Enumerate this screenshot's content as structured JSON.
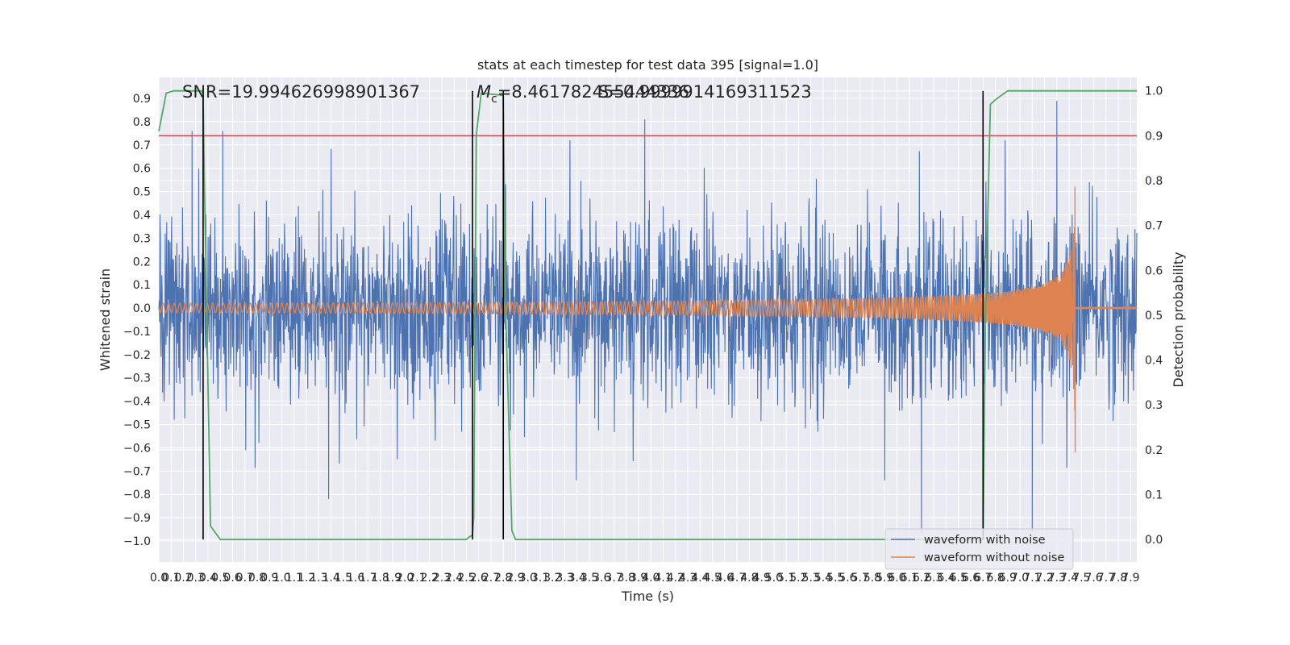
{
  "chart_data": {
    "type": "line",
    "title": "stats at each timestep for test data 395 [signal=1.0]",
    "xlabel": "Time (s)",
    "ylabel": "Whitened strain",
    "y2label": "Detection probability",
    "xlim": [
      0.0,
      7.95
    ],
    "ylim": [
      -1.09,
      0.99
    ],
    "y2lim": [
      -0.05,
      1.03
    ],
    "xticks": [
      0.0,
      0.1,
      0.2,
      0.3,
      0.4,
      0.5,
      0.6,
      0.7,
      0.8,
      0.9,
      1.0,
      1.1,
      1.2,
      1.3,
      1.4,
      1.5,
      1.6,
      1.7,
      1.8,
      1.9,
      2.0,
      2.1,
      2.2,
      2.3,
      2.4,
      2.5,
      2.6,
      2.7,
      2.8,
      2.9,
      3.0,
      3.1,
      3.2,
      3.3,
      3.4,
      3.5,
      3.6,
      3.7,
      3.8,
      3.9,
      4.0,
      4.1,
      4.2,
      4.3,
      4.4,
      4.5,
      4.6,
      4.7,
      4.8,
      4.9,
      5.0,
      5.1,
      5.2,
      5.3,
      5.4,
      5.5,
      5.6,
      5.7,
      5.8,
      5.9,
      6.0,
      6.1,
      6.2,
      6.3,
      6.4,
      6.5,
      6.6,
      6.7,
      6.8,
      6.9,
      7.0,
      7.1,
      7.2,
      7.3,
      7.4,
      7.5,
      7.6,
      7.7,
      7.8,
      7.9
    ],
    "xtick_labels": [
      "0.0",
      "0.1",
      "0.2",
      "0.3",
      "0.4",
      "0.5",
      "0.6",
      "0.7",
      "0.8",
      "0.9",
      "1.0",
      "1.1",
      "1.2",
      "1.3",
      "1.4",
      "1.5",
      "1.6",
      "1.7",
      "1.8",
      "1.9",
      "2.0",
      "2.1",
      "2.2",
      "2.3",
      "2.4",
      "2.5",
      "2.6",
      "2.7",
      "2.8",
      "2.9",
      "3.0",
      "3.1",
      "3.2",
      "3.3",
      "3.4",
      "3.5",
      "3.6",
      "3.7",
      "3.8",
      "3.9",
      "4.0",
      "4.1",
      "4.2",
      "4.3",
      "4.4",
      "4.5",
      "4.6",
      "4.7",
      "4.8",
      "4.9",
      "5.0",
      "5.1",
      "5.2",
      "5.3",
      "5.4",
      "5.5",
      "5.6",
      "5.7",
      "5.8",
      "5.9",
      "6.0",
      "6.1",
      "6.2",
      "6.3",
      "6.4",
      "6.5",
      "6.6",
      "6.7",
      "6.8",
      "6.9",
      "7.0",
      "7.1",
      "7.2",
      "7.3",
      "7.4",
      "7.5",
      "7.6",
      "7.7",
      "7.8",
      "7.9"
    ],
    "yticks": [
      -1.0,
      -0.9,
      -0.8,
      -0.7,
      -0.6,
      -0.5,
      -0.4,
      -0.3,
      -0.2,
      -0.1,
      0.0,
      0.1,
      0.2,
      0.3,
      0.4,
      0.5,
      0.6,
      0.7,
      0.8,
      0.9
    ],
    "ytick_labels": [
      "−1.0",
      "−0.9",
      "−0.8",
      "−0.7",
      "−0.6",
      "−0.5",
      "−0.4",
      "−0.3",
      "−0.2",
      "−0.1",
      "0.0",
      "0.1",
      "0.2",
      "0.3",
      "0.4",
      "0.5",
      "0.6",
      "0.7",
      "0.8",
      "0.9"
    ],
    "y2ticks": [
      0.0,
      0.1,
      0.2,
      0.3,
      0.4,
      0.5,
      0.6,
      0.7,
      0.8,
      0.9,
      1.0
    ],
    "y2tick_labels": [
      "0.0",
      "0.1",
      "0.2",
      "0.3",
      "0.4",
      "0.5",
      "0.6",
      "0.7",
      "0.8",
      "0.9",
      "1.0"
    ],
    "threshold": {
      "value": 0.9,
      "axis": "right",
      "color": "#c44e52"
    },
    "series": [
      {
        "name": "waveform with noise",
        "color": "#4c72b0",
        "axis": "left",
        "description": "whitened strain with noise, approx. uniform amplitude",
        "typical_range": [
          -0.55,
          0.55
        ],
        "peaks_max": [
          [
            0.27,
            0.76
          ],
          [
            0.52,
            0.76
          ],
          [
            3.95,
            0.81
          ],
          [
            7.3,
            0.89
          ]
        ],
        "peaks_min": [
          [
            6.2,
            -0.97
          ],
          [
            7.1,
            -0.96
          ],
          [
            1.38,
            -0.82
          ]
        ]
      },
      {
        "name": "waveform without noise",
        "color": "#dd8452",
        "axis": "left",
        "description": "chirp signal, amplitude grows toward merger",
        "start_amplitude": 0.02,
        "merger_time": 7.45,
        "merger_amplitude_max": 0.52,
        "merger_amplitude_min": -0.62,
        "end_time": 7.95
      },
      {
        "name": "detection probability",
        "color": "#55a868",
        "axis": "right",
        "x": [
          0.0,
          0.06,
          0.12,
          0.2,
          0.35,
          0.36,
          0.37,
          0.42,
          0.5,
          2.5,
          2.52,
          2.55,
          2.56,
          2.58,
          2.62,
          2.8,
          2.82,
          2.87,
          2.9,
          6.7,
          6.72,
          6.76,
          6.8,
          6.9,
          7.95
        ],
        "values": [
          0.91,
          0.995,
          1.0,
          1.0,
          1.0,
          0.99,
          0.8,
          0.03,
          0.0,
          0.0,
          0.005,
          0.01,
          0.05,
          0.9,
          0.995,
          0.99,
          0.5,
          0.02,
          0.0,
          0.0,
          0.5,
          0.97,
          0.98,
          1.0,
          1.0
        ]
      }
    ],
    "vlines": [
      0.36,
      2.55,
      2.8,
      6.7
    ],
    "annotations": {
      "snr": "SNR=19.994626998901367",
      "mc_prefix": "M",
      "mc_subscript": "c",
      "mc_value": "=8.461782455444336",
      "s2": "S=0.9999914169311523"
    },
    "legend": {
      "position": "lower-right",
      "entries": [
        "waveform with noise",
        "waveform without noise"
      ]
    }
  }
}
